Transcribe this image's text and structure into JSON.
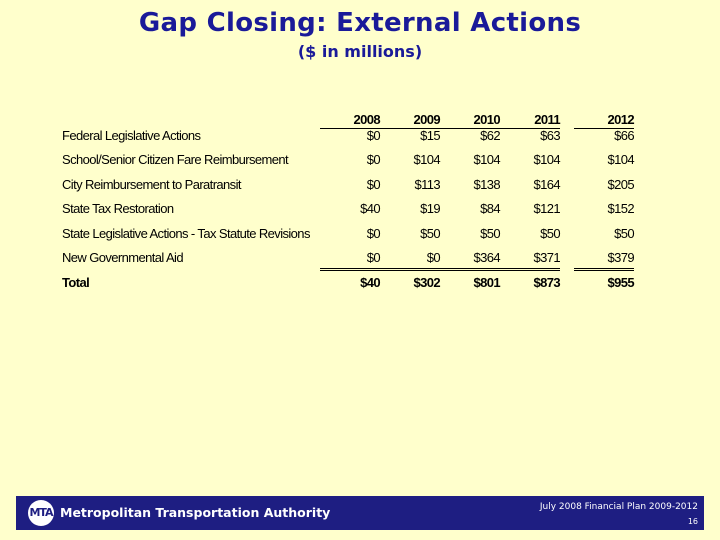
{
  "slide": {
    "title": "Gap Closing: External Actions",
    "subtitle": "($ in millions)"
  },
  "table": {
    "years": [
      "2008",
      "2009",
      "2010",
      "2011",
      "2012"
    ],
    "rows": [
      {
        "label": "Federal Legislative Actions",
        "values": [
          "$0",
          "$15",
          "$62",
          "$63",
          "$66"
        ]
      },
      {
        "label": "School/Senior Citizen Fare Reimbursement",
        "values": [
          "$0",
          "$104",
          "$104",
          "$104",
          "$104"
        ]
      },
      {
        "label": "City Reimbursement to Paratransit",
        "values": [
          "$0",
          "$113",
          "$138",
          "$164",
          "$205"
        ]
      },
      {
        "label": "State Tax Restoration",
        "values": [
          "$40",
          "$19",
          "$84",
          "$121",
          "$152"
        ]
      },
      {
        "label": "State Legislative Actions - Tax Statute Revisions",
        "values": [
          "$0",
          "$50",
          "$50",
          "$50",
          "$50"
        ]
      },
      {
        "label": "New Governmental Aid",
        "values": [
          "$0",
          "$0",
          "$364",
          "$371",
          "$379"
        ]
      }
    ],
    "total": {
      "label": "Total",
      "values": [
        "$40",
        "$302",
        "$801",
        "$873",
        "$955"
      ]
    }
  },
  "footer": {
    "logo_text": "MTA",
    "organization": "Metropolitan Transportation Authority",
    "plan_title": "July 2008 Financial Plan 2009-2012",
    "page_number": "16"
  },
  "colors": {
    "background": "#ffffcc",
    "title": "#1a1a99",
    "footer_bar": "#1e1e82"
  }
}
